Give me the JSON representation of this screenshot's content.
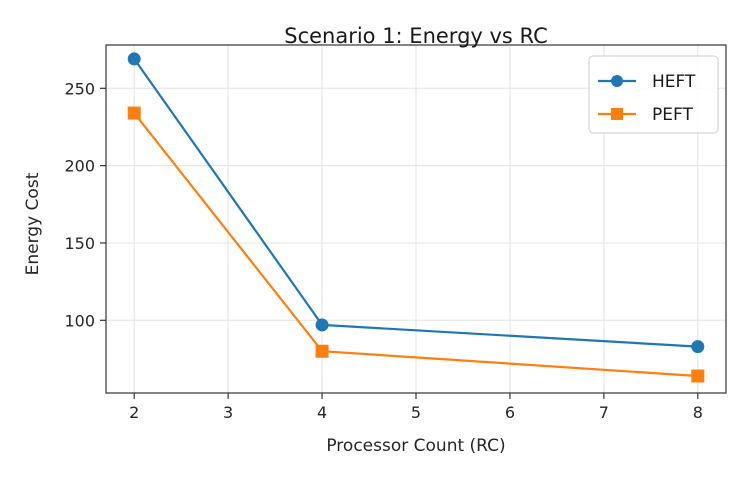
{
  "chart_data": {
    "type": "line",
    "title": "Scenario 1: Energy vs RC",
    "xlabel": "Processor Count (RC)",
    "ylabel": "Energy Cost",
    "x": [
      2,
      4,
      8
    ],
    "xlim": [
      1.7,
      8.3
    ],
    "ylim": [
      53,
      278
    ],
    "xticks": [
      2,
      3,
      4,
      5,
      6,
      7,
      8
    ],
    "yticks": [
      100,
      150,
      200,
      250
    ],
    "grid": true,
    "legend_position": "top-right",
    "series": [
      {
        "name": "HEFT",
        "values": [
          269,
          97,
          83
        ],
        "color": "#1f77b4",
        "marker": "circle"
      },
      {
        "name": "PEFT",
        "values": [
          234,
          80,
          64
        ],
        "color": "#ff7f0e",
        "marker": "square"
      }
    ]
  }
}
